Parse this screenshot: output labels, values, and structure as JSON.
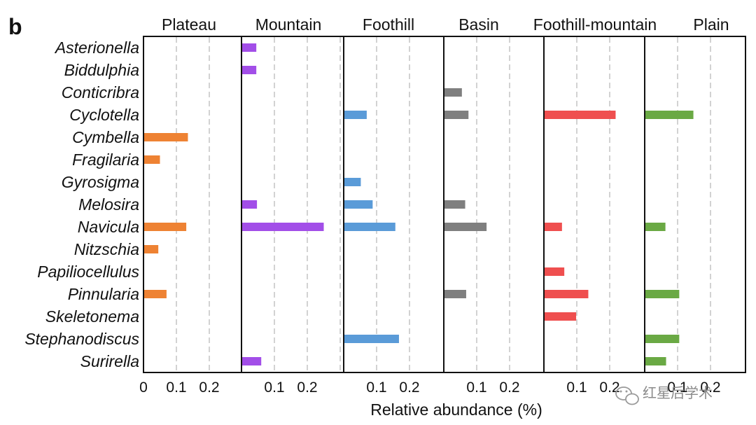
{
  "panel_label": "b",
  "watermark": {
    "text": "红星后学术",
    "icon": "wechat-icon",
    "color": "#9a9a9a"
  },
  "chart_data": {
    "type": "bar",
    "orientation": "horizontal",
    "xlabel": "Relative abundance (%)",
    "xlim": [
      0,
      0.3
    ],
    "xticks": [
      0.1,
      0.2
    ],
    "first_panel_zero_label": "0",
    "grid": "dashed vertical",
    "categories": [
      "Asterionella",
      "Biddulphia",
      "Conticribra",
      "Cyclotella",
      "Cymbella",
      "Fragilaria",
      "Gyrosigma",
      "Melosira",
      "Navicula",
      "Nitzschia",
      "Papiliocellulus",
      "Pinnularia",
      "Skeletonema",
      "Stephanodiscus",
      "Surirella"
    ],
    "series": [
      {
        "name": "Plateau",
        "color": "#ee8233",
        "values": [
          null,
          null,
          null,
          null,
          0.135,
          0.05,
          null,
          null,
          0.13,
          0.045,
          null,
          0.07,
          null,
          null,
          null
        ]
      },
      {
        "name": "Mountain",
        "color": "#a24ee8",
        "values": [
          0.045,
          0.045,
          null,
          null,
          null,
          null,
          null,
          0.047,
          0.25,
          null,
          null,
          null,
          null,
          null,
          0.06
        ]
      },
      {
        "name": "Foothill",
        "color": "#5a9bd8",
        "values": [
          null,
          null,
          null,
          0.07,
          null,
          null,
          0.052,
          0.088,
          0.157,
          null,
          null,
          null,
          null,
          0.168,
          null
        ]
      },
      {
        "name": "Basin",
        "color": "#7f7f7f",
        "values": [
          null,
          null,
          0.055,
          0.075,
          null,
          null,
          null,
          0.065,
          0.13,
          null,
          null,
          0.068,
          null,
          null,
          null
        ]
      },
      {
        "name": "Foothill-mountain",
        "color": "#ef4f4f",
        "values": [
          null,
          null,
          null,
          0.218,
          null,
          null,
          null,
          null,
          0.055,
          null,
          0.062,
          0.135,
          0.098,
          null,
          null
        ]
      },
      {
        "name": "Plain",
        "color": "#6aa944",
        "values": [
          null,
          null,
          null,
          0.148,
          null,
          null,
          null,
          null,
          0.063,
          null,
          null,
          0.105,
          null,
          0.105,
          0.065
        ]
      }
    ]
  }
}
